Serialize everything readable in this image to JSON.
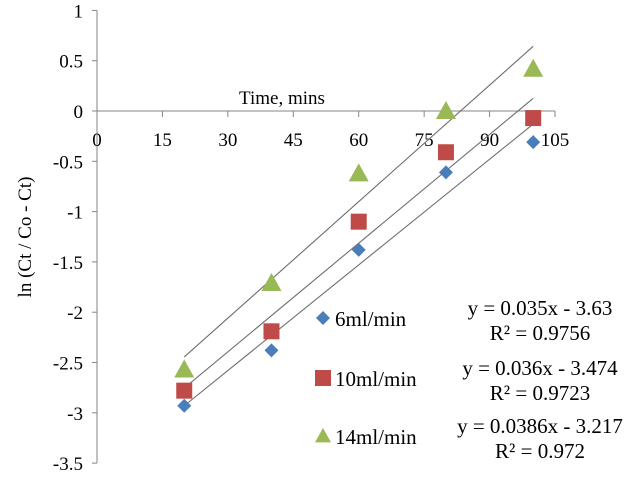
{
  "chart_data": {
    "type": "scatter",
    "title": "",
    "xlabel": "Time, mins",
    "ylabel": "ln (Ct / Co - Ct)",
    "xlim": [
      0,
      105
    ],
    "ylim": [
      -3.5,
      1
    ],
    "x_ticks": [
      "0",
      "15",
      "30",
      "45",
      "60",
      "75",
      "90",
      "105"
    ],
    "y_ticks": [
      "1",
      "0.5",
      "0",
      "-0.5",
      "-1",
      "-1.5",
      "-2",
      "-2.5",
      "-3",
      "-3.5"
    ],
    "grid": false,
    "legend_placement": "bottom-right",
    "series": [
      {
        "name": "6ml/min",
        "marker": "diamond",
        "color": "#4a7ebb",
        "x": [
          20,
          40,
          60,
          80,
          100
        ],
        "y": [
          -2.93,
          -2.38,
          -1.38,
          -0.61,
          -0.31
        ],
        "trend": {
          "slope": 0.035,
          "intercept": -3.63,
          "equation": "y = 0.035x - 3.63",
          "r2": "R² = 0.9756"
        }
      },
      {
        "name": "10ml/min",
        "marker": "square",
        "color": "#be4b48",
        "x": [
          20,
          40,
          60,
          80,
          100
        ],
        "y": [
          -2.78,
          -2.19,
          -1.1,
          -0.41,
          -0.07
        ],
        "trend": {
          "slope": 0.036,
          "intercept": -3.474,
          "equation": "y = 0.036x - 3.474",
          "r2": "R² = 0.9723"
        }
      },
      {
        "name": "14ml/min",
        "marker": "triangle",
        "color": "#98b954",
        "x": [
          20,
          40,
          60,
          80,
          100
        ],
        "y": [
          -2.57,
          -1.71,
          -0.62,
          0.0,
          0.42
        ],
        "trend": {
          "slope": 0.0386,
          "intercept": -3.217,
          "equation": "y = 0.0386x - 3.217",
          "r2": "R² = 0.972"
        }
      }
    ]
  }
}
